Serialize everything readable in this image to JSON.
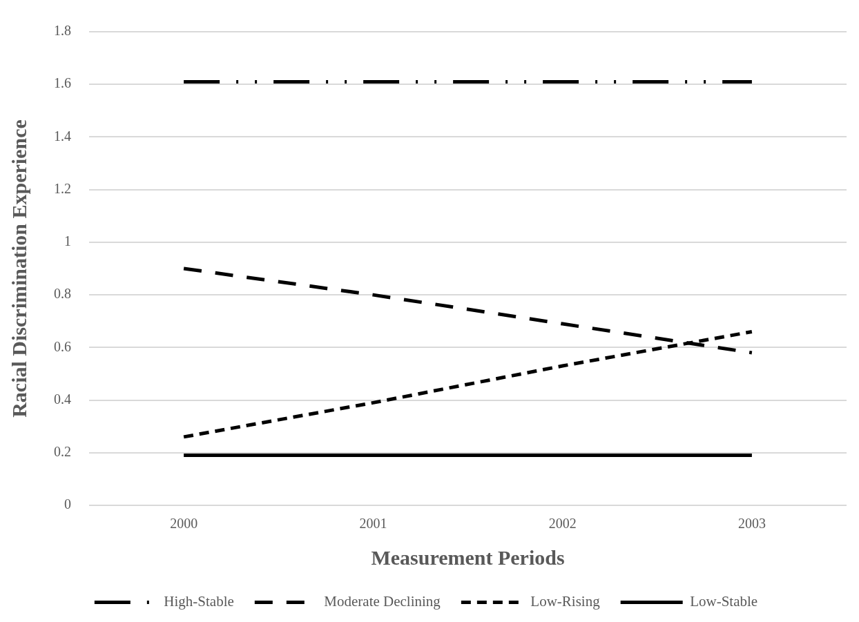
{
  "chart_data": {
    "type": "line",
    "xlabel": "Measurement Periods",
    "ylabel": "Racial Discrimination Experience",
    "categories": [
      "2000",
      "2001",
      "2002",
      "2003"
    ],
    "series": [
      {
        "name": "High-Stable",
        "color": "#000000",
        "line_style": "dashed",
        "values": [
          1.61,
          1.61,
          1.61,
          1.61
        ]
      },
      {
        "name": "Moderate Declining",
        "color": "#000000",
        "line_style": "dashed",
        "values": [
          0.9,
          0.8,
          0.69,
          0.58
        ]
      },
      {
        "name": "Low-Rising",
        "color": "#000000",
        "line_style": "dotted",
        "values": [
          0.26,
          0.39,
          0.53,
          0.66
        ]
      },
      {
        "name": "Low-Stable",
        "color": "#000000",
        "line_style": "solid",
        "values": [
          0.19,
          0.19,
          0.19,
          0.19
        ]
      }
    ],
    "ylim": [
      0,
      1.8
    ],
    "yticks": [
      0,
      0.2,
      0.4,
      0.6,
      0.8,
      1,
      1.2,
      1.4,
      1.6,
      1.8
    ],
    "grid": "y",
    "legend": "bottom",
    "marker": "none"
  }
}
